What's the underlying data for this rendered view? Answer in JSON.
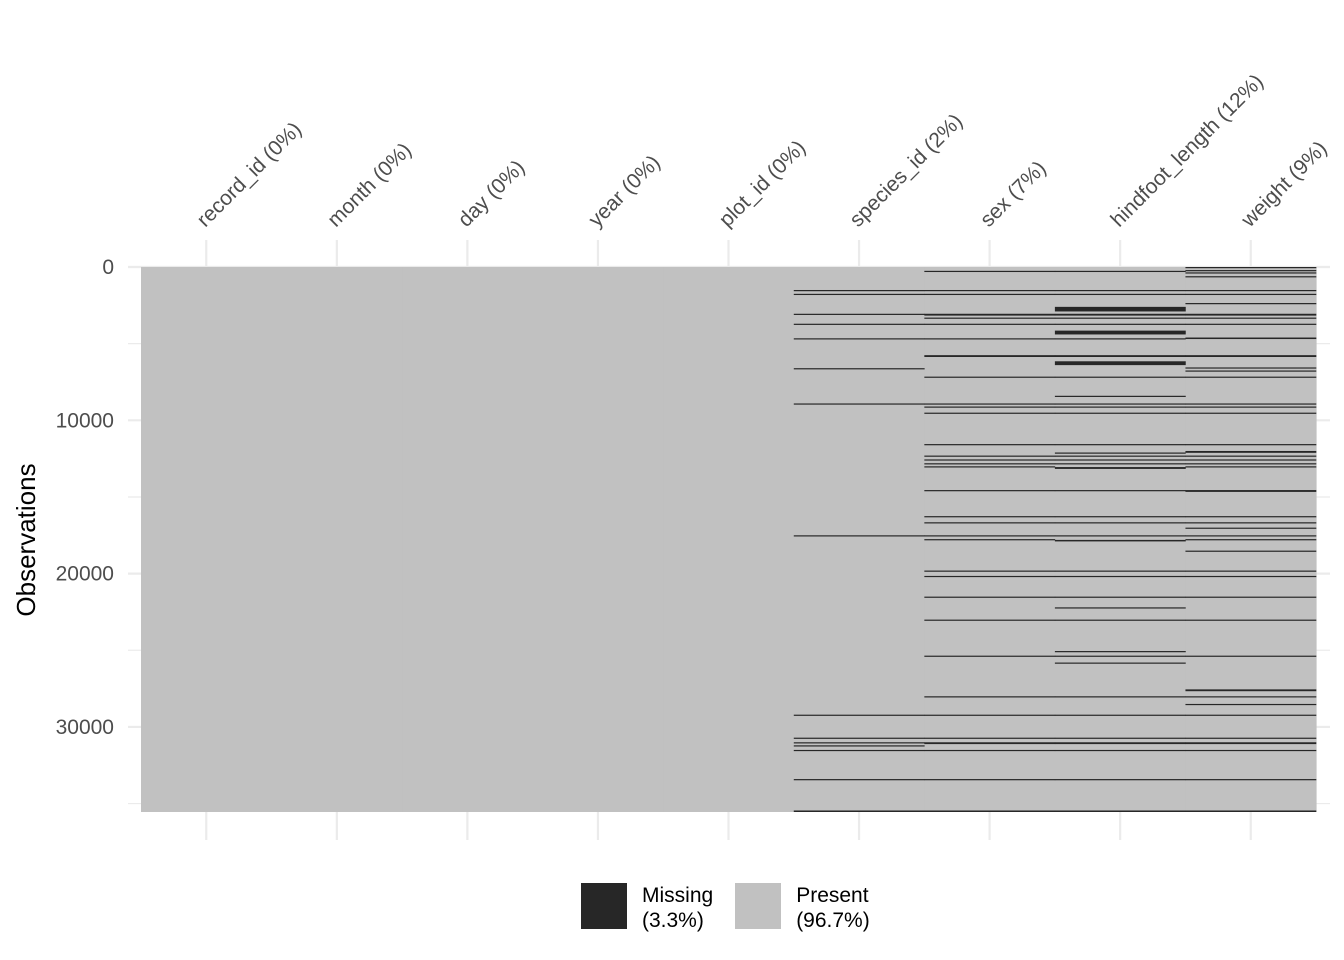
{
  "chart_data": {
    "type": "heatmap",
    "ylabel": "Observations",
    "n_observations": 35549,
    "ylim": [
      0,
      35549
    ],
    "y_ticks": [
      0,
      10000,
      20000,
      30000
    ],
    "columns": [
      {
        "label": "record_id (0%)",
        "missing_blocks": []
      },
      {
        "label": "month (0%)",
        "missing_blocks": []
      },
      {
        "label": "day (0%)",
        "missing_blocks": []
      },
      {
        "label": "year (0%)",
        "missing_blocks": []
      },
      {
        "label": "plot_id (0%)",
        "missing_blocks": []
      },
      {
        "label": "species_id (2%)",
        "missing_blocks": [
          [
            1500,
            80
          ],
          [
            1750,
            60
          ],
          [
            3050,
            60
          ],
          [
            3700,
            60
          ],
          [
            4650,
            60
          ],
          [
            6600,
            60
          ],
          [
            8900,
            60
          ],
          [
            17500,
            60
          ],
          [
            29200,
            60
          ],
          [
            30700,
            60
          ],
          [
            31000,
            60
          ],
          [
            31200,
            60
          ],
          [
            31500,
            60
          ],
          [
            33400,
            80
          ],
          [
            35450,
            99
          ]
        ]
      },
      {
        "label": "sex (7%)",
        "missing_blocks": [
          [
            250,
            60
          ],
          [
            1500,
            60
          ],
          [
            1750,
            60
          ],
          [
            3050,
            120
          ],
          [
            3300,
            60
          ],
          [
            3700,
            60
          ],
          [
            4650,
            60
          ],
          [
            5750,
            120
          ],
          [
            7150,
            60
          ],
          [
            8900,
            60
          ],
          [
            9100,
            60
          ],
          [
            9500,
            60
          ],
          [
            11550,
            60
          ],
          [
            12300,
            60
          ],
          [
            12550,
            60
          ],
          [
            12800,
            60
          ],
          [
            13000,
            60
          ],
          [
            14550,
            60
          ],
          [
            16250,
            60
          ],
          [
            16650,
            60
          ],
          [
            17500,
            60
          ],
          [
            17750,
            60
          ],
          [
            19800,
            60
          ],
          [
            20150,
            60
          ],
          [
            21500,
            60
          ],
          [
            23000,
            60
          ],
          [
            25350,
            60
          ],
          [
            28000,
            60
          ],
          [
            29200,
            60
          ],
          [
            30700,
            60
          ],
          [
            31000,
            120
          ],
          [
            31500,
            60
          ],
          [
            33400,
            80
          ],
          [
            35450,
            99
          ]
        ]
      },
      {
        "label": "hindfoot_length (12%)",
        "missing_blocks": [
          [
            250,
            60
          ],
          [
            1500,
            60
          ],
          [
            1750,
            60
          ],
          [
            2600,
            300
          ],
          [
            3050,
            120
          ],
          [
            3300,
            60
          ],
          [
            3700,
            60
          ],
          [
            4150,
            250
          ],
          [
            4650,
            60
          ],
          [
            5750,
            120
          ],
          [
            6150,
            250
          ],
          [
            7150,
            60
          ],
          [
            8400,
            60
          ],
          [
            8900,
            60
          ],
          [
            9100,
            60
          ],
          [
            9500,
            60
          ],
          [
            11550,
            60
          ],
          [
            12100,
            60
          ],
          [
            12300,
            60
          ],
          [
            12550,
            60
          ],
          [
            12800,
            60
          ],
          [
            13050,
            120
          ],
          [
            14550,
            60
          ],
          [
            16250,
            60
          ],
          [
            16650,
            60
          ],
          [
            17500,
            60
          ],
          [
            17800,
            100
          ],
          [
            19800,
            60
          ],
          [
            20150,
            60
          ],
          [
            21500,
            60
          ],
          [
            22200,
            60
          ],
          [
            23000,
            60
          ],
          [
            25050,
            60
          ],
          [
            25350,
            60
          ],
          [
            25800,
            60
          ],
          [
            28000,
            60
          ],
          [
            29200,
            60
          ],
          [
            30700,
            60
          ],
          [
            31000,
            120
          ],
          [
            31500,
            60
          ],
          [
            33400,
            80
          ],
          [
            35450,
            99
          ]
        ]
      },
      {
        "label": "weight (9%)",
        "missing_blocks": [
          [
            0,
            60
          ],
          [
            200,
            60
          ],
          [
            350,
            60
          ],
          [
            600,
            60
          ],
          [
            1500,
            60
          ],
          [
            1750,
            60
          ],
          [
            2350,
            60
          ],
          [
            3050,
            120
          ],
          [
            3300,
            60
          ],
          [
            3700,
            60
          ],
          [
            4600,
            100
          ],
          [
            5750,
            120
          ],
          [
            6550,
            60
          ],
          [
            6750,
            60
          ],
          [
            7150,
            60
          ],
          [
            8900,
            60
          ],
          [
            9100,
            60
          ],
          [
            9500,
            60
          ],
          [
            11550,
            60
          ],
          [
            12000,
            120
          ],
          [
            12300,
            60
          ],
          [
            12550,
            60
          ],
          [
            12800,
            60
          ],
          [
            13000,
            60
          ],
          [
            14550,
            120
          ],
          [
            16250,
            60
          ],
          [
            16650,
            60
          ],
          [
            17000,
            60
          ],
          [
            17500,
            60
          ],
          [
            17750,
            60
          ],
          [
            18500,
            60
          ],
          [
            19800,
            60
          ],
          [
            20150,
            60
          ],
          [
            21500,
            60
          ],
          [
            23000,
            60
          ],
          [
            25350,
            60
          ],
          [
            27550,
            120
          ],
          [
            28000,
            60
          ],
          [
            28500,
            60
          ],
          [
            29200,
            60
          ],
          [
            30700,
            60
          ],
          [
            31000,
            120
          ],
          [
            31500,
            60
          ],
          [
            33400,
            80
          ],
          [
            35450,
            99
          ]
        ]
      }
    ],
    "legend": [
      {
        "label": "Missing",
        "pct": "(3.3%)",
        "color": "#272727"
      },
      {
        "label": "Present",
        "pct": "(96.7%)",
        "color": "#c1c1c1"
      }
    ],
    "colors": {
      "missing": "#272727",
      "present": "#c1c1c1",
      "grid": "#ebebeb"
    }
  }
}
